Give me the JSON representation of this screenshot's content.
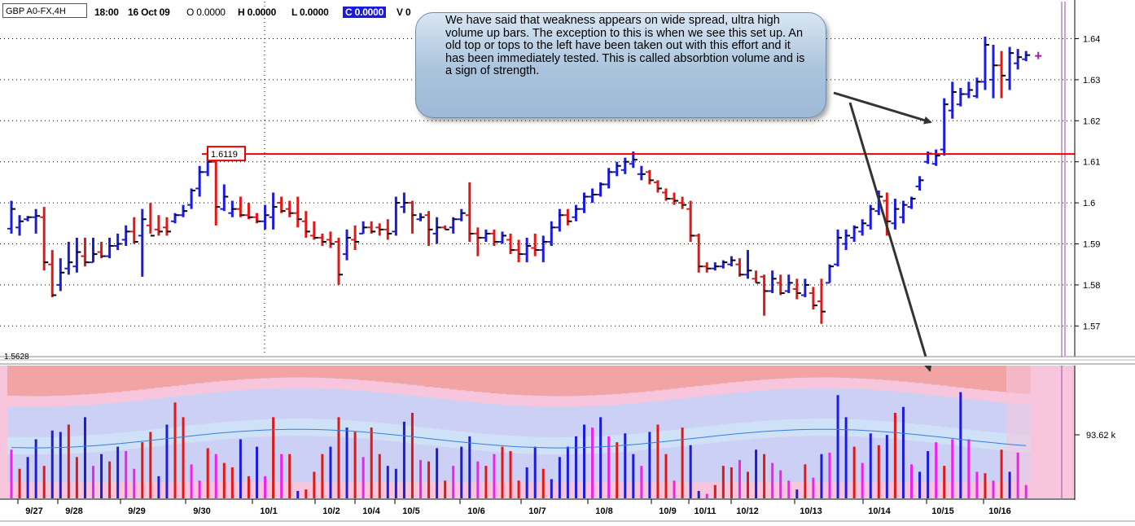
{
  "header": {
    "symbol": "GBP A0-FX,4H",
    "time": "18:00",
    "date": "16 Oct 09",
    "open": "O 0.0000",
    "high": "H 0.0000",
    "low": "L 0.0000",
    "close": "C 0.0000",
    "volume": "V 0"
  },
  "annotation": {
    "text": "We have said that weakness appears on wide spread, ultra high volume up bars. The exception to this is when we see this set up. An old top or tops to the left have been taken out with this effort and it has been immediately tested. This is called absorbtion volume and is a sign of strength."
  },
  "price_labels": {
    "resistance": "1.6119",
    "bottom_value": "1.5628",
    "volume_value": "93.62 k"
  },
  "colors": {
    "up_bar": "#1c1cdc",
    "down_bar": "#e01818",
    "volume_magenta": "#ee22ee",
    "resistance_line": "#ee0000",
    "zone_red": "#f2a4a4",
    "zone_pink": "#f7c6dc",
    "zone_lavender": "#cdd0f5",
    "zone_lightblue": "#cfe1f7"
  },
  "chart_data": [
    {
      "type": "ohlc",
      "yticks": [
        1.57,
        1.58,
        1.59,
        1.6,
        1.61,
        1.62,
        1.63,
        1.64
      ],
      "ytick_labels": [
        "1.57",
        "1.58",
        "1.59",
        "1.6",
        "1.61",
        "1.62",
        "1.63",
        "1.64"
      ],
      "ylim": [
        1.5628,
        1.6485
      ],
      "date_labels": [
        "9/27",
        "9/28",
        "9/29",
        "9/30",
        "10/1",
        "10/2",
        "10/4",
        "10/5",
        "10/6",
        "10/7",
        "10/8",
        "10/9",
        "10/11",
        "10/12",
        "10/13",
        "10/14",
        "10/15",
        "10/16"
      ],
      "horizontal_line": 1.6119,
      "bars": [
        [
          1.6005,
          1.5925,
          1.5937,
          1.5985
        ],
        [
          1.597,
          1.592,
          1.594,
          1.5955
        ],
        [
          1.5968,
          1.5955,
          1.596,
          1.5965
        ],
        [
          1.5985,
          1.5925,
          1.5965,
          1.5968
        ],
        [
          1.599,
          1.5835,
          1.5965,
          1.5855
        ],
        [
          1.5885,
          1.577,
          1.585,
          1.5775
        ],
        [
          1.5865,
          1.5785,
          1.58,
          1.583
        ],
        [
          1.5905,
          1.5825,
          1.584,
          1.5855
        ],
        [
          1.5915,
          1.583,
          1.5845,
          1.588
        ],
        [
          1.5915,
          1.5845,
          1.587,
          1.5855
        ],
        [
          1.5915,
          1.5855,
          1.5855,
          1.5875
        ],
        [
          1.5905,
          1.5865,
          1.588,
          1.587
        ],
        [
          1.5915,
          1.5865,
          1.587,
          1.5895
        ],
        [
          1.5925,
          1.5885,
          1.5895,
          1.59
        ],
        [
          1.5945,
          1.5895,
          1.591,
          1.593
        ],
        [
          1.5965,
          1.59,
          1.593,
          1.5905
        ],
        [
          1.5985,
          1.582,
          1.592,
          1.596
        ],
        [
          1.6,
          1.5925,
          1.5945,
          1.592
        ],
        [
          1.597,
          1.592,
          1.5935,
          1.593
        ],
        [
          1.5965,
          1.592,
          1.594,
          1.593
        ],
        [
          1.5975,
          1.595,
          1.5955,
          1.597
        ],
        [
          1.5995,
          1.5965,
          1.597,
          1.598
        ],
        [
          1.6035,
          1.5985,
          1.5995,
          1.603
        ],
        [
          1.609,
          1.6015,
          1.6035,
          1.6075
        ],
        [
          1.6125,
          1.6065,
          1.6075,
          1.61
        ],
        [
          1.6105,
          1.5945,
          1.61,
          1.599
        ],
        [
          1.6045,
          1.598,
          1.5985,
          1.6015
        ],
        [
          1.6005,
          1.5965,
          1.5975,
          1.5985
        ],
        [
          1.6015,
          1.5965,
          1.5985,
          1.597
        ],
        [
          1.6,
          1.596,
          1.597,
          1.5965
        ],
        [
          1.5975,
          1.595,
          1.5965,
          1.5955
        ],
        [
          1.5995,
          1.5935,
          1.5955,
          1.597
        ],
        [
          1.6025,
          1.5935,
          1.5965,
          1.599
        ],
        [
          1.6015,
          1.5975,
          1.6,
          1.598
        ],
        [
          1.6005,
          1.5965,
          1.5985,
          1.5975
        ],
        [
          1.6015,
          1.594,
          1.5975,
          1.596
        ],
        [
          1.598,
          1.5915,
          1.5955,
          1.593
        ],
        [
          1.5955,
          1.591,
          1.592,
          1.5915
        ],
        [
          1.5925,
          1.5895,
          1.5915,
          1.5905
        ],
        [
          1.593,
          1.589,
          1.591,
          1.59
        ],
        [
          1.5915,
          1.58,
          1.5905,
          1.5825
        ],
        [
          1.5935,
          1.586,
          1.5875,
          1.5915
        ],
        [
          1.5945,
          1.5885,
          1.591,
          1.5905
        ],
        [
          1.5955,
          1.5925,
          1.5925,
          1.594
        ],
        [
          1.5955,
          1.5925,
          1.594,
          1.593
        ],
        [
          1.595,
          1.592,
          1.594,
          1.5935
        ],
        [
          1.596,
          1.591,
          1.5935,
          1.5925
        ],
        [
          1.6015,
          1.592,
          1.593,
          1.6
        ],
        [
          1.6025,
          1.5975,
          1.599,
          1.6
        ],
        [
          1.6005,
          1.5925,
          1.6,
          1.597
        ],
        [
          1.5975,
          1.5955,
          1.596,
          1.5965
        ],
        [
          1.598,
          1.5895,
          1.597,
          1.5935
        ],
        [
          1.5965,
          1.59,
          1.5925,
          1.594
        ],
        [
          1.5945,
          1.5935,
          1.594,
          1.5935
        ],
        [
          1.5965,
          1.5925,
          1.594,
          1.596
        ],
        [
          1.5985,
          1.5955,
          1.596,
          1.5975
        ],
        [
          1.605,
          1.5905,
          1.597,
          1.5925
        ],
        [
          1.594,
          1.587,
          1.5925,
          1.5915
        ],
        [
          1.5935,
          1.5905,
          1.5915,
          1.5925
        ],
        [
          1.5935,
          1.5895,
          1.5925,
          1.5905
        ],
        [
          1.593,
          1.59,
          1.5905,
          1.592
        ],
        [
          1.5925,
          1.5875,
          1.591,
          1.5885
        ],
        [
          1.591,
          1.5855,
          1.5885,
          1.5875
        ],
        [
          1.5915,
          1.5855,
          1.5875,
          1.5895
        ],
        [
          1.5925,
          1.587,
          1.589,
          1.5885
        ],
        [
          1.592,
          1.5855,
          1.5885,
          1.5905
        ],
        [
          1.5955,
          1.5895,
          1.5905,
          1.594
        ],
        [
          1.5985,
          1.593,
          1.594,
          1.597
        ],
        [
          1.5985,
          1.5945,
          1.597,
          1.5955
        ],
        [
          1.5995,
          1.5955,
          1.5965,
          1.5985
        ],
        [
          1.6025,
          1.5975,
          1.5985,
          1.6015
        ],
        [
          1.6035,
          1.6,
          1.6015,
          1.602
        ],
        [
          1.605,
          1.6015,
          1.602,
          1.6045
        ],
        [
          1.6085,
          1.6035,
          1.6045,
          1.6075
        ],
        [
          1.61,
          1.6065,
          1.6075,
          1.609
        ],
        [
          1.611,
          1.607,
          1.608,
          1.61
        ],
        [
          1.6125,
          1.6085,
          1.6095,
          1.6105
        ],
        [
          1.609,
          1.6055,
          1.607,
          1.607
        ],
        [
          1.608,
          1.6045,
          1.6075,
          1.6055
        ],
        [
          1.6055,
          1.6025,
          1.605,
          1.6035
        ],
        [
          1.6035,
          1.6005,
          1.6025,
          1.601
        ],
        [
          1.6025,
          1.5995,
          1.601,
          1.6005
        ],
        [
          1.6015,
          1.5985,
          1.6,
          1.5995
        ],
        [
          1.6005,
          1.5905,
          1.5985,
          1.592
        ],
        [
          1.5925,
          1.583,
          1.592,
          1.5845
        ],
        [
          1.5855,
          1.583,
          1.5845,
          1.584
        ],
        [
          1.5855,
          1.5835,
          1.584,
          1.5845
        ],
        [
          1.586,
          1.584,
          1.5845,
          1.5855
        ],
        [
          1.587,
          1.5845,
          1.585,
          1.586
        ],
        [
          1.5865,
          1.582,
          1.585,
          1.5825
        ],
        [
          1.5885,
          1.5815,
          1.5825,
          1.5835
        ],
        [
          1.5835,
          1.5805,
          1.5815,
          1.5805
        ],
        [
          1.5825,
          1.5725,
          1.582,
          1.5785
        ],
        [
          1.5835,
          1.578,
          1.5785,
          1.5815
        ],
        [
          1.5825,
          1.5775,
          1.5805,
          1.578
        ],
        [
          1.5825,
          1.578,
          1.5785,
          1.5805
        ],
        [
          1.5815,
          1.5765,
          1.579,
          1.578
        ],
        [
          1.5815,
          1.577,
          1.5775,
          1.58
        ],
        [
          1.5795,
          1.574,
          1.578,
          1.575
        ],
        [
          1.5815,
          1.5705,
          1.576,
          1.5735
        ],
        [
          1.585,
          1.5805,
          1.5805,
          1.5845
        ],
        [
          1.5935,
          1.5845,
          1.585,
          1.5915
        ],
        [
          1.5935,
          1.5885,
          1.59,
          1.592
        ],
        [
          1.5945,
          1.5905,
          1.5915,
          1.594
        ],
        [
          1.596,
          1.592,
          1.593,
          1.595
        ],
        [
          1.5995,
          1.5935,
          1.5945,
          1.5985
        ],
        [
          1.603,
          1.597,
          1.598,
          1.6015
        ],
        [
          1.6025,
          1.592,
          1.6005,
          1.5955
        ],
        [
          1.601,
          1.5935,
          1.595,
          1.5985
        ],
        [
          1.6005,
          1.595,
          1.5965,
          1.5995
        ],
        [
          1.6015,
          1.5985,
          1.599,
          1.601
        ],
        [
          1.6065,
          1.603,
          1.604,
          1.6055
        ],
        [
          1.6125,
          1.6095,
          1.61,
          1.612
        ],
        [
          1.613,
          1.609,
          1.6095,
          1.6115
        ],
        [
          1.6255,
          1.6115,
          1.613,
          1.624
        ],
        [
          1.6295,
          1.6205,
          1.6225,
          1.627
        ],
        [
          1.628,
          1.6235,
          1.624,
          1.6265
        ],
        [
          1.6295,
          1.6255,
          1.6265,
          1.6275
        ],
        [
          1.6305,
          1.6255,
          1.626,
          1.6295
        ],
        [
          1.6405,
          1.6275,
          1.6295,
          1.6385
        ],
        [
          1.6385,
          1.6255,
          1.63,
          1.6335
        ],
        [
          1.637,
          1.6255,
          1.6335,
          1.631
        ],
        [
          1.638,
          1.6275,
          1.63,
          1.6365
        ],
        [
          1.6375,
          1.6325,
          1.634,
          1.6355
        ],
        [
          1.637,
          1.6345,
          1.635,
          1.636
        ]
      ],
      "last_tick": 1.6358
    },
    {
      "type": "bar",
      "value_label": "93.62 k",
      "volumes": [
        0.33,
        0.2,
        0.28,
        0.4,
        0.22,
        0.46,
        0.45,
        0.5,
        0.28,
        0.55,
        0.22,
        0.3,
        0.25,
        0.35,
        0.32,
        0.2,
        0.38,
        0.45,
        0.15,
        0.5,
        0.65,
        0.55,
        0.23,
        0.12,
        0.34,
        0.3,
        0.24,
        0.21,
        0.4,
        0.15,
        0.35,
        0.15,
        0.55,
        0.3,
        0.3,
        0.05,
        0.06,
        0.18,
        0.3,
        0.35,
        0.55,
        0.48,
        0.45,
        0.28,
        0.48,
        0.3,
        0.22,
        0.2,
        0.52,
        0.58,
        0.26,
        0.25,
        0.34,
        0.12,
        0.22,
        0.35,
        0.42,
        0.25,
        0.22,
        0.3,
        0.35,
        0.32,
        0.12,
        0.21,
        0.35,
        0.2,
        0.13,
        0.28,
        0.35,
        0.42,
        0.5,
        0.48,
        0.55,
        0.42,
        0.38,
        0.44,
        0.3,
        0.22,
        0.45,
        0.5,
        0.3,
        0.12,
        0.48,
        0.36,
        0.05,
        0.03,
        0.09,
        0.22,
        0.21,
        0.26,
        0.18,
        0.33,
        0.3,
        0.24,
        0.19,
        0.12,
        0.06,
        0.23,
        0.14,
        0.3,
        0.31,
        0.7,
        0.55,
        0.35,
        0.24,
        0.44,
        0.36,
        0.43,
        0.58,
        0.62,
        0.23,
        0.18,
        0.32,
        0.38,
        0.22,
        0.4,
        0.72,
        0.4,
        0.18,
        0.17,
        0.12,
        0.33,
        0.18,
        0.31,
        0.09
      ],
      "volume_colors": [
        "m",
        "r",
        "b",
        "b",
        "r",
        "b",
        "b",
        "r",
        "r",
        "b",
        "m",
        "b",
        "r",
        "b",
        "m",
        "m",
        "r",
        "r",
        "b",
        "b",
        "r",
        "r",
        "m",
        "m",
        "r",
        "m",
        "r",
        "r",
        "b",
        "r",
        "b",
        "m",
        "r",
        "m",
        "r",
        "b",
        "r",
        "r",
        "r",
        "b",
        "r",
        "b",
        "r",
        "m",
        "r",
        "r",
        "b",
        "b",
        "b",
        "r",
        "m",
        "r",
        "b",
        "r",
        "m",
        "b",
        "b",
        "m",
        "r",
        "m",
        "r",
        "r",
        "r",
        "b",
        "b",
        "r",
        "b",
        "b",
        "b",
        "b",
        "b",
        "m",
        "b",
        "m",
        "r",
        "b",
        "b",
        "m",
        "b",
        "r",
        "r",
        "m",
        "r",
        "b",
        "b",
        "m",
        "r",
        "r",
        "r",
        "m",
        "r",
        "b",
        "r",
        "m",
        "m",
        "m",
        "b",
        "r",
        "m",
        "b",
        "m",
        "b",
        "b",
        "r",
        "m",
        "b",
        "r",
        "b",
        "r",
        "b",
        "m",
        "b",
        "b",
        "m",
        "r",
        "m",
        "b",
        "m",
        "m",
        "r",
        "m",
        "r",
        "b",
        "m",
        "m"
      ]
    }
  ]
}
